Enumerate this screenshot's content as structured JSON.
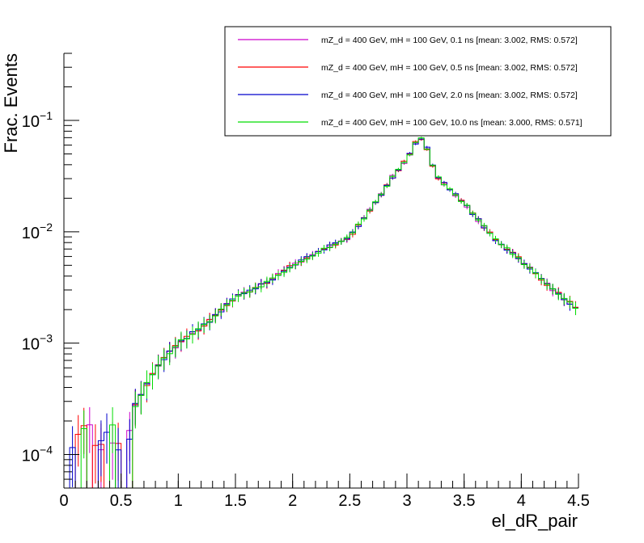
{
  "chart_data": {
    "type": "line",
    "title": "",
    "xlabel": "el_dR_pair",
    "ylabel": "Frac. Events",
    "xlim": [
      0,
      4.5
    ],
    "ylim": [
      5e-05,
      0.4
    ],
    "yscale": "log",
    "grid": false,
    "legend_position": "top-right",
    "x_ticks": [
      {
        "value": 0,
        "label": "0"
      },
      {
        "value": 0.5,
        "label": "0.5"
      },
      {
        "value": 1,
        "label": "1"
      },
      {
        "value": 1.5,
        "label": "1.5"
      },
      {
        "value": 2,
        "label": "2"
      },
      {
        "value": 2.5,
        "label": "2.5"
      },
      {
        "value": 3,
        "label": "3"
      },
      {
        "value": 3.5,
        "label": "3.5"
      },
      {
        "value": 4,
        "label": "4"
      },
      {
        "value": 4.5,
        "label": "4.5"
      }
    ],
    "y_ticks": [
      {
        "value": 0.0001,
        "base": "10",
        "exp": "−4"
      },
      {
        "value": 0.001,
        "base": "10",
        "exp": "−3"
      },
      {
        "value": 0.01,
        "base": "10",
        "exp": "−2"
      },
      {
        "value": 0.1,
        "base": "10",
        "exp": "−1"
      }
    ],
    "bin_width": 0.05,
    "series": [
      {
        "name": "mZ_d = 400 GeV, mH = 100 GeV, 0.1 ns [mean: 3.002, RMS: 0.572]",
        "color": "#cc00cc",
        "seed": 11,
        "y_offset": 0
      },
      {
        "name": "mZ_d = 400 GeV, mH = 100 GeV, 0.5 ns [mean: 3.002, RMS: 0.572]",
        "color": "#ff0000",
        "seed": 23,
        "y_offset": 0
      },
      {
        "name": "mZ_d = 400 GeV, mH = 100 GeV, 2.0 ns [mean: 3.002, RMS: 0.572]",
        "color": "#0000cc",
        "seed": 37,
        "y_offset": 0
      },
      {
        "name": "mZ_d = 400 GeV, mH = 100 GeV, 10.0 ns [mean: 3.000, RMS: 0.571]",
        "color": "#00dd00",
        "seed": 53,
        "y_offset": 0
      }
    ]
  }
}
